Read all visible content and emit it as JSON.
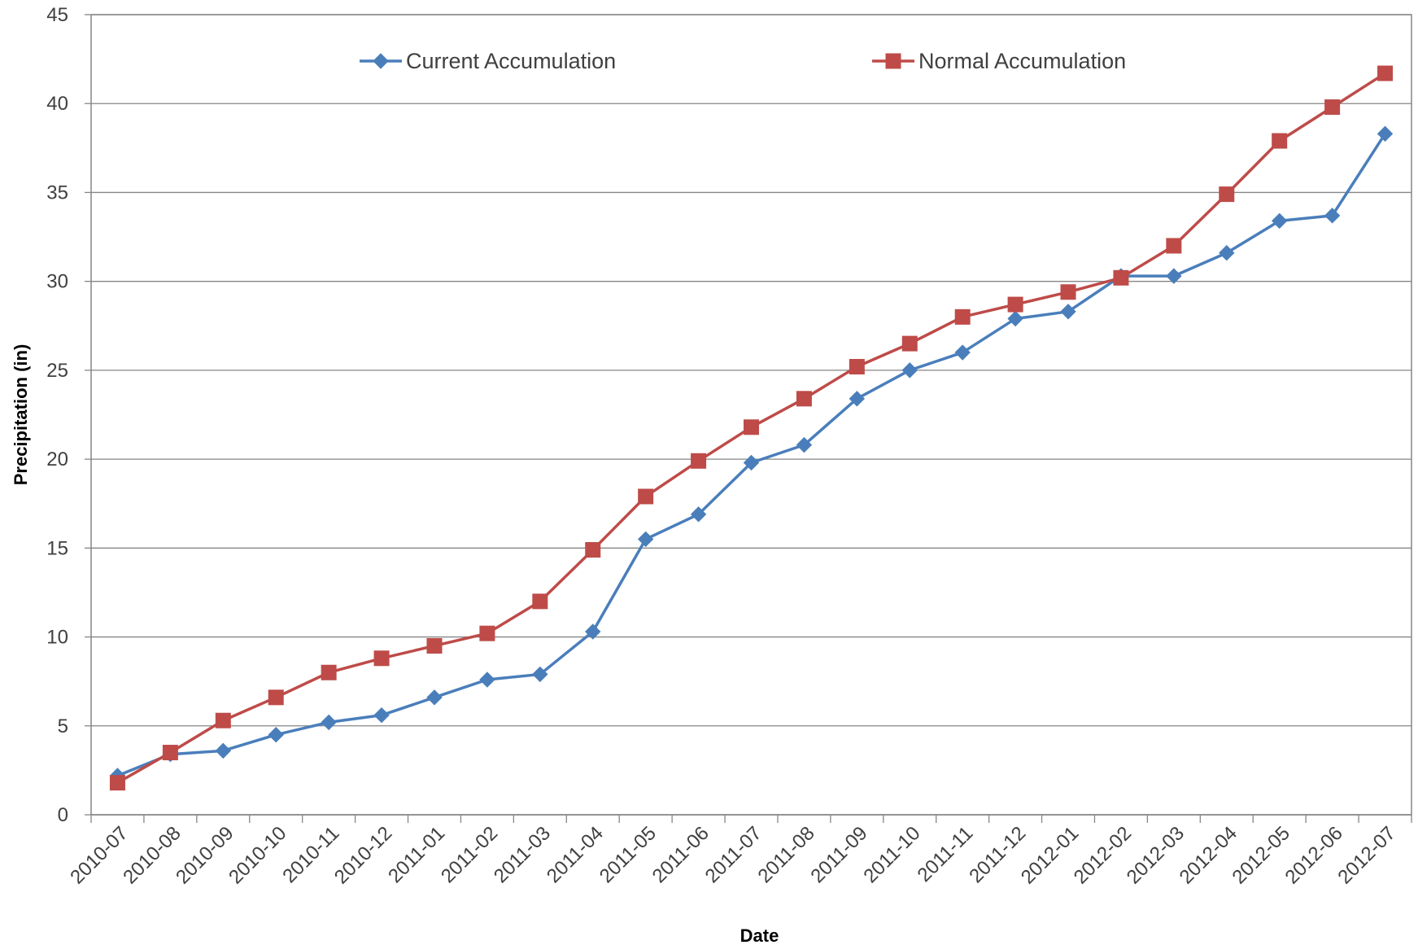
{
  "chart_data": {
    "type": "line",
    "title": "",
    "xlabel": "Date",
    "ylabel": "Precipitation (in)",
    "ylim": [
      0,
      45
    ],
    "yticks": [
      0,
      5,
      10,
      15,
      20,
      25,
      30,
      35,
      40,
      45
    ],
    "grid": "horizontal",
    "legend_position": "top",
    "categories": [
      "2010-07",
      "2010-08",
      "2010-09",
      "2010-10",
      "2010-11",
      "2010-12",
      "2011-01",
      "2011-02",
      "2011-03",
      "2011-04",
      "2011-05",
      "2011-06",
      "2011-07",
      "2011-08",
      "2011-09",
      "2011-10",
      "2011-11",
      "2011-12",
      "2012-01",
      "2012-02",
      "2012-03",
      "2012-04",
      "2012-05",
      "2012-06",
      "2012-07"
    ],
    "series": [
      {
        "name": "Current Accumulation",
        "color": "#4a7ebb",
        "marker": "diamond",
        "values": [
          2.2,
          3.4,
          3.6,
          4.5,
          5.2,
          5.6,
          6.6,
          7.6,
          7.9,
          10.3,
          15.5,
          16.9,
          19.8,
          20.8,
          23.4,
          25.0,
          26.0,
          27.9,
          28.3,
          30.3,
          30.3,
          31.6,
          33.4,
          33.7,
          38.3
        ]
      },
      {
        "name": "Normal Accumulation",
        "color": "#be4b48",
        "marker": "square",
        "values": [
          1.8,
          3.5,
          5.3,
          6.6,
          8.0,
          8.8,
          9.5,
          10.2,
          12.0,
          14.9,
          17.9,
          19.9,
          21.8,
          23.4,
          25.2,
          26.5,
          28.0,
          28.7,
          29.4,
          30.2,
          32.0,
          34.9,
          37.9,
          39.8,
          41.7
        ]
      }
    ]
  }
}
